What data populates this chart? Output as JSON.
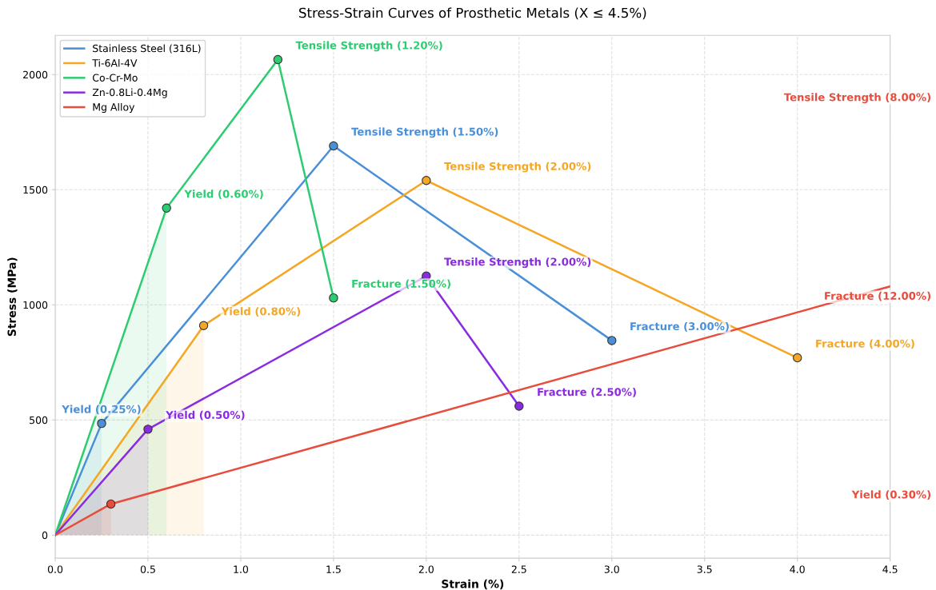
{
  "chart_data": {
    "type": "line",
    "title": "Stress-Strain Curves of Prosthetic Metals (X ≤ 4.5%)",
    "xlabel": "Strain (%)",
    "ylabel": "Stress (MPa)",
    "xlim": [
      0,
      4.5
    ],
    "ylim": [
      -100,
      2170
    ],
    "xticks": [
      {
        "value": 0,
        "label": "0.0"
      },
      0.5,
      {
        "value": 1,
        "label": "1.0"
      },
      1.5,
      {
        "value": 2,
        "label": "2.0"
      },
      2.5,
      {
        "value": 3,
        "label": "3.0"
      },
      3.5,
      {
        "value": 4,
        "label": "4.0"
      },
      4.5
    ],
    "yticks": [
      0,
      500,
      1000,
      1500,
      2000
    ],
    "grid": true,
    "legend": "top left",
    "line_style": "solid",
    "series": [
      {
        "name": "Stainless Steel (316L)",
        "color": "#4a90d9",
        "x": [
          0,
          0.25,
          1.5,
          3.0
        ],
        "values": [
          0,
          485,
          1690,
          845
        ]
      },
      {
        "name": "Ti-6Al-4V",
        "color": "#f5a623",
        "x": [
          0,
          0.8,
          2.0,
          4.0
        ],
        "values": [
          0,
          910,
          1540,
          770
        ]
      },
      {
        "name": "Co-Cr-Mo",
        "color": "#2ecc71",
        "x": [
          0,
          0.6,
          1.2,
          1.5
        ],
        "values": [
          0,
          1420,
          2065,
          1030
        ]
      },
      {
        "name": "Zn-0.8Li-0.4Mg",
        "color": "#8a2be2",
        "x": [
          0,
          0.5,
          2.0,
          2.5
        ],
        "values": [
          0,
          460,
          1125,
          560
        ]
      },
      {
        "name": "Mg Alloy",
        "color": "#e74c3c",
        "x": [
          0,
          0.3,
          4.5
        ],
        "values": [
          0,
          135,
          1080
        ]
      },
      {
        "type": "scatter",
        "color": "#4a90d9",
        "x": [
          0.25,
          1.5,
          3.0
        ],
        "values": [
          485,
          1690,
          845
        ]
      },
      {
        "type": "scatter",
        "color": "#f5a623",
        "x": [
          0.8,
          2.0,
          4.0
        ],
        "values": [
          910,
          1540,
          770
        ]
      },
      {
        "type": "scatter",
        "color": "#2ecc71",
        "x": [
          0.6,
          1.2,
          1.5
        ],
        "values": [
          1420,
          2065,
          1030
        ]
      },
      {
        "type": "scatter",
        "color": "#8a2be2",
        "x": [
          0.5,
          2.0,
          2.5
        ],
        "values": [
          460,
          1125,
          560
        ]
      },
      {
        "type": "scatter",
        "color": "#e74c3c",
        "x": [
          0.3
        ],
        "values": [
          135
        ]
      }
    ],
    "annotations": [
      {
        "text": "Yield (0.25%)",
        "x": 0.25,
        "y": 485
      },
      {
        "text": "Tensile Strength (1.50%)",
        "x": 1.5,
        "y": 1690
      },
      {
        "text": "Fracture (3.00%)",
        "x": 3.0,
        "y": 845
      },
      {
        "text": "Yield (0.80%)",
        "x": 0.8,
        "y": 910
      },
      {
        "text": "Tensile Strength (2.00%)",
        "x": 2.0,
        "y": 1540
      },
      {
        "text": "Fracture (4.00%)",
        "x": 4.0,
        "y": 770
      },
      {
        "text": "Yield (0.60%)",
        "x": 0.6,
        "y": 1420
      },
      {
        "text": "Tensile Strength (1.20%)",
        "x": 1.2,
        "y": 2065
      },
      {
        "text": "Fracture (1.50%)",
        "x": 1.5,
        "y": 1030
      },
      {
        "text": "Yield (0.50%)",
        "x": 0.5,
        "y": 460
      },
      {
        "text": "Tensile Strength (2.00%)",
        "x": 2.0,
        "y": 1125
      },
      {
        "text": "Fracture (2.50%)",
        "x": 2.5,
        "y": 560
      },
      "Tensile Strength (8.00%)",
      "Fracture (12.00%)",
      "Yield (0.30%)"
    ]
  }
}
